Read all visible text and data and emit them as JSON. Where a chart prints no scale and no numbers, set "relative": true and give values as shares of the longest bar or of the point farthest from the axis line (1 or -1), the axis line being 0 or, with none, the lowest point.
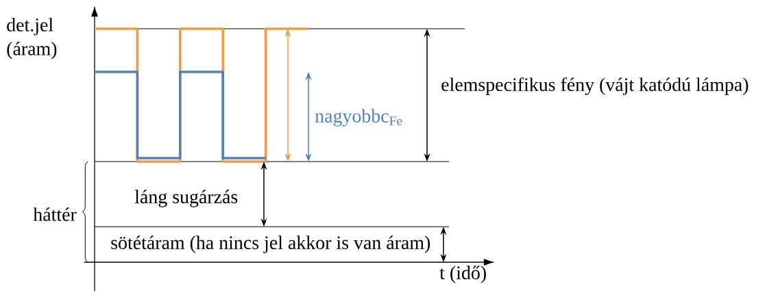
{
  "chart_data": {
    "type": "step",
    "relative": true,
    "ylabel": "det.jel (áram)",
    "categories": [
      null,
      null,
      null,
      null,
      null,
      null
    ],
    "series": [
      {
        "color": "#f79646",
        "values": [
          1,
          0.431,
          1,
          0.431,
          1,
          1
        ]
      },
      {
        "color": "#4f81bd",
        "values": [
          0.815,
          0.446,
          0.815,
          0.446,
          0.446,
          null
        ]
      }
    ],
    "ref_lines": [
      {
        "axis": "y",
        "value": 1
      },
      {
        "axis": "y",
        "value": 0.431
      },
      {
        "axis": "y",
        "value": 0.152
      }
    ],
    "annotations": [
      "elemspecifikus fény (vájt katódú lámpa)",
      "nagyobbc$_{Fe}$",
      "láng sugárzás",
      "háttér",
      "sötétáram (ha nincs jel akkor is van áram)",
      "t (idő)"
    ],
    "marker": "none",
    "line_style": "solid"
  }
}
